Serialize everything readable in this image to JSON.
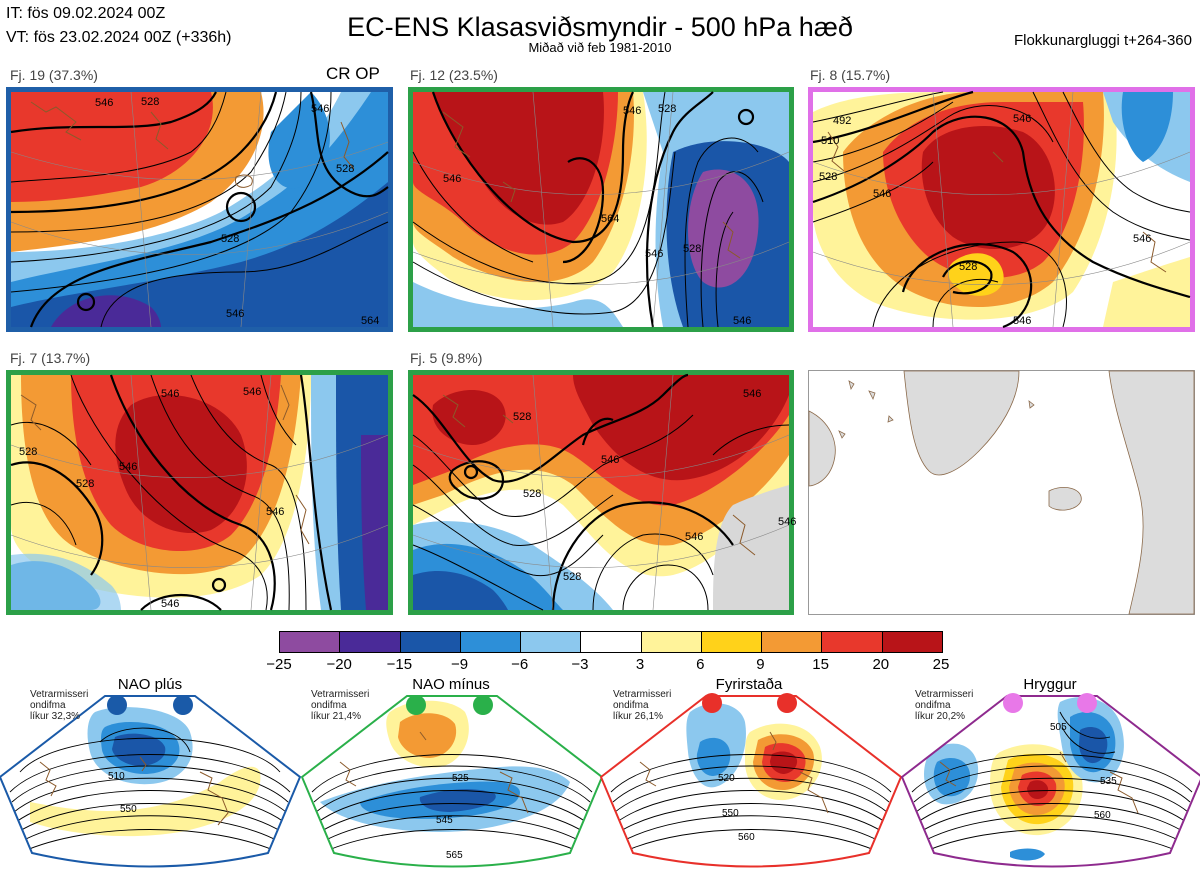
{
  "header": {
    "it": "IT: fös 09.02.2024 00Z",
    "vt": "VT: fös 23.02.2024 00Z  (+336h)",
    "title": "EC-ENS Klasasviðsmyndir - 500 hPa hæð",
    "subtitle": "Miðað við feb 1981-2010",
    "window": "Flokkunargluggi t+264-360"
  },
  "op_marker": "CR OP",
  "panels": [
    {
      "label": "Fj. 19 (37.3%)",
      "border": "#1f5fa8",
      "contours": [
        "546",
        "528",
        "546",
        "528",
        "528",
        "546",
        "564"
      ]
    },
    {
      "label": "Fj. 12 (23.5%)",
      "border": "#2ca048",
      "contours": [
        "546",
        "528",
        "546",
        "564",
        "546",
        "528",
        "546"
      ]
    },
    {
      "label": "Fj. 8 (15.7%)",
      "border": "#e070e8",
      "contours": [
        "492",
        "510",
        "528",
        "546",
        "546",
        "528",
        "546",
        "546"
      ]
    },
    {
      "label": "Fj. 7 (13.7%)",
      "border": "#2ca048",
      "contours": [
        "546",
        "546",
        "528",
        "546",
        "528",
        "546",
        "546"
      ]
    },
    {
      "label": "Fj. 5 (9.8%)",
      "border": "#2ca048",
      "contours": [
        "528",
        "546",
        "546",
        "528",
        "546",
        "546",
        "528"
      ]
    }
  ],
  "colorbar": {
    "colors": [
      "#8e4ba0",
      "#4a2a98",
      "#1a56a8",
      "#2d8fd8",
      "#8cc8ee",
      "#ffffff",
      "#fff39a",
      "#ffd21a",
      "#f39a34",
      "#e8382c",
      "#b81418"
    ],
    "ticks": [
      "−25",
      "−20",
      "−15",
      "−9",
      "−6",
      "−3",
      "3",
      "6",
      "9",
      "15",
      "20",
      "25"
    ]
  },
  "regimes": [
    {
      "name": "NAO plús",
      "note": [
        "Vetrarmisseri",
        "ondifma",
        "líkur 32,3%"
      ],
      "color": "#1a5aa8",
      "contours": [
        "510",
        "550"
      ]
    },
    {
      "name": "NAO mínus",
      "note": [
        "Vetrarmisseri",
        "ondifma",
        "líkur 21,4%"
      ],
      "color": "#2ab04a",
      "contours": [
        "525",
        "545",
        "565"
      ]
    },
    {
      "name": "Fyrirstaða",
      "note": [
        "Vetrarmisseri",
        "ondifma",
        "líkur 26,1%"
      ],
      "color": "#e8302a",
      "contours": [
        "520",
        "550",
        "560"
      ]
    },
    {
      "name": "Hryggur",
      "note": [
        "Vetrarmisseri",
        "ondifma",
        "líkur 20,2%"
      ],
      "color": "#e878e8",
      "contours": [
        "505",
        "535",
        "560"
      ]
    }
  ]
}
